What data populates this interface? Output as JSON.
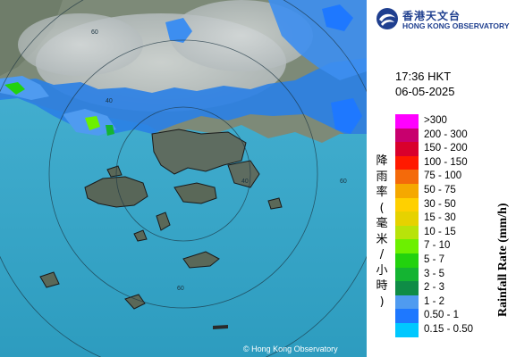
{
  "logo": {
    "name_zh": "香港天文台",
    "name_en": "HONG KONG OBSERVATORY"
  },
  "timestamp": {
    "time": "17:36 HKT",
    "date": "06-05-2025"
  },
  "legend": {
    "unit_zh": "降雨率(毫米/小時)",
    "unit_en": "Rainfall Rate (mm/h)",
    "items": [
      {
        "label": ">300",
        "color": "#ff00ff"
      },
      {
        "label": "200 - 300",
        "color": "#c8006e"
      },
      {
        "label": "150 - 200",
        "color": "#d9002c"
      },
      {
        "label": "100 - 150",
        "color": "#ff1a00"
      },
      {
        "label": "75 - 100",
        "color": "#f46a0a"
      },
      {
        "label": "50 - 75",
        "color": "#f5a800"
      },
      {
        "label": "30 - 50",
        "color": "#ffd000"
      },
      {
        "label": "15 - 30",
        "color": "#e6d200"
      },
      {
        "label": "10 - 15",
        "color": "#b8e30a"
      },
      {
        "label": "7 - 10",
        "color": "#6cf000"
      },
      {
        "label": "5 - 7",
        "color": "#22d20e"
      },
      {
        "label": "3 - 5",
        "color": "#14b432"
      },
      {
        "label": "2 - 3",
        "color": "#0f8c46"
      },
      {
        "label": "1 - 2",
        "color": "#4f9bf0"
      },
      {
        "label": "0.50 - 1",
        "color": "#1e78ff"
      },
      {
        "label": "0.15 - 0.50",
        "color": "#00c8ff"
      }
    ]
  },
  "map": {
    "range_ring_labels": [
      "60",
      "40",
      "60",
      "60",
      "40"
    ],
    "sea_color": "#3aa6c8",
    "land_color": "#6b7a6a"
  },
  "copyright": "© Hong Kong Observatory"
}
